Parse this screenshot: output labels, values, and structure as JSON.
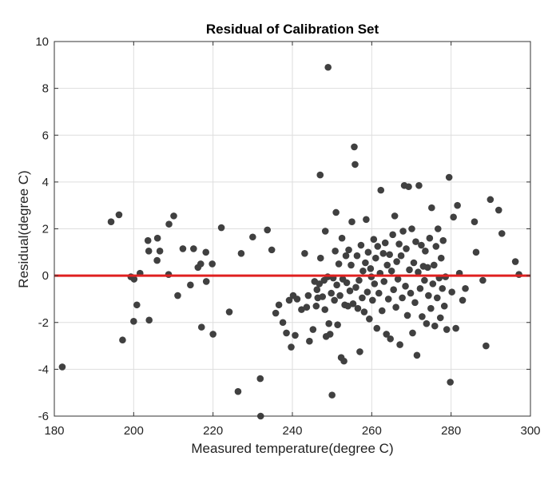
{
  "chart_data": {
    "type": "scatter",
    "title": "Residual of Calibration Set",
    "xlabel": "Measured temperature(degree C)",
    "ylabel": "Residual(degree C)",
    "xlim": [
      180,
      300
    ],
    "ylim": [
      -6,
      10
    ],
    "xticks": [
      180,
      200,
      220,
      240,
      260,
      280,
      300
    ],
    "yticks": [
      -6,
      -4,
      -2,
      0,
      2,
      4,
      6,
      8,
      10
    ],
    "grid": true,
    "legend": "none",
    "point_color": "#404040",
    "reference_line": {
      "y": 0,
      "color": "#e02020"
    },
    "points": [
      [
        182.0,
        -3.9
      ],
      [
        194.3,
        2.3
      ],
      [
        196.3,
        2.6
      ],
      [
        197.2,
        -2.75
      ],
      [
        199.3,
        -0.05
      ],
      [
        200.0,
        -1.95
      ],
      [
        200.1,
        -0.15
      ],
      [
        200.8,
        -1.25
      ],
      [
        201.6,
        0.1
      ],
      [
        203.6,
        1.5
      ],
      [
        203.8,
        1.05
      ],
      [
        203.9,
        -1.9
      ],
      [
        205.9,
        0.65
      ],
      [
        206.0,
        1.6
      ],
      [
        206.6,
        1.05
      ],
      [
        208.8,
        0.05
      ],
      [
        208.9,
        2.2
      ],
      [
        210.1,
        2.55
      ],
      [
        211.1,
        -0.85
      ],
      [
        212.4,
        1.15
      ],
      [
        214.3,
        -0.4
      ],
      [
        215.1,
        1.15
      ],
      [
        216.2,
        0.35
      ],
      [
        216.9,
        0.5
      ],
      [
        217.1,
        -2.2
      ],
      [
        218.2,
        1.0
      ],
      [
        218.3,
        -0.25
      ],
      [
        219.8,
        0.5
      ],
      [
        220.0,
        -2.5
      ],
      [
        222.1,
        2.05
      ],
      [
        224.1,
        -1.55
      ],
      [
        226.3,
        -4.95
      ],
      [
        227.1,
        0.95
      ],
      [
        230.0,
        1.65
      ],
      [
        231.9,
        -4.4
      ],
      [
        232.0,
        -6.0
      ],
      [
        233.7,
        1.95
      ],
      [
        234.8,
        1.1
      ],
      [
        235.8,
        -1.6
      ],
      [
        236.6,
        -1.25
      ],
      [
        237.6,
        -2.0
      ],
      [
        238.5,
        -2.45
      ],
      [
        239.2,
        -1.05
      ],
      [
        239.7,
        -3.05
      ],
      [
        240.2,
        -0.85
      ],
      [
        240.7,
        -2.55
      ],
      [
        241.2,
        -1.0
      ],
      [
        242.3,
        -1.45
      ],
      [
        243.1,
        0.95
      ],
      [
        243.6,
        -1.35
      ],
      [
        244.0,
        -0.85
      ],
      [
        244.3,
        -2.8
      ],
      [
        245.2,
        -2.3
      ],
      [
        245.6,
        -0.25
      ],
      [
        246.0,
        -1.3
      ],
      [
        246.2,
        -0.6
      ],
      [
        246.4,
        -0.95
      ],
      [
        246.8,
        -0.35
      ],
      [
        247.0,
        4.3
      ],
      [
        247.1,
        0.75
      ],
      [
        247.6,
        -0.9
      ],
      [
        248.0,
        -0.2
      ],
      [
        248.2,
        -1.45
      ],
      [
        248.3,
        1.9
      ],
      [
        248.5,
        -2.6
      ],
      [
        248.9,
        -0.05
      ],
      [
        249.0,
        8.9
      ],
      [
        249.2,
        -2.05
      ],
      [
        249.5,
        -2.5
      ],
      [
        249.8,
        -0.75
      ],
      [
        250.0,
        -5.1
      ],
      [
        250.3,
        -0.1
      ],
      [
        250.6,
        -1.05
      ],
      [
        250.8,
        1.05
      ],
      [
        251.0,
        2.7
      ],
      [
        251.2,
        -0.4
      ],
      [
        251.4,
        -2.1
      ],
      [
        251.7,
        0.5
      ],
      [
        252.0,
        -0.85
      ],
      [
        252.3,
        -3.5
      ],
      [
        252.5,
        1.6
      ],
      [
        252.7,
        -0.15
      ],
      [
        253.0,
        -3.65
      ],
      [
        253.2,
        -1.25
      ],
      [
        253.5,
        0.85
      ],
      [
        253.7,
        -0.3
      ],
      [
        254.0,
        -1.3
      ],
      [
        254.2,
        1.1
      ],
      [
        254.5,
        -0.65
      ],
      [
        254.8,
        0.45
      ],
      [
        255.0,
        2.3
      ],
      [
        255.3,
        -1.2
      ],
      [
        255.6,
        5.5
      ],
      [
        255.8,
        4.75
      ],
      [
        256.0,
        -0.5
      ],
      [
        256.3,
        0.85
      ],
      [
        256.5,
        -1.4
      ],
      [
        256.8,
        -0.2
      ],
      [
        257.0,
        -3.25
      ],
      [
        257.3,
        1.3
      ],
      [
        257.6,
        -0.95
      ],
      [
        257.8,
        0.2
      ],
      [
        258.1,
        -1.55
      ],
      [
        258.4,
        0.55
      ],
      [
        258.6,
        2.4
      ],
      [
        258.9,
        -0.7
      ],
      [
        259.1,
        1.0
      ],
      [
        259.4,
        -1.85
      ],
      [
        259.7,
        0.3
      ],
      [
        259.9,
        -0.05
      ],
      [
        260.2,
        -1.05
      ],
      [
        260.5,
        1.55
      ],
      [
        260.7,
        -0.35
      ],
      [
        261.0,
        0.75
      ],
      [
        261.3,
        -2.25
      ],
      [
        261.5,
        1.25
      ],
      [
        261.8,
        -0.75
      ],
      [
        262.1,
        0.1
      ],
      [
        262.3,
        3.65
      ],
      [
        262.6,
        -1.5
      ],
      [
        262.9,
        0.95
      ],
      [
        263.1,
        -0.25
      ],
      [
        263.4,
        1.4
      ],
      [
        263.7,
        -2.5
      ],
      [
        263.9,
        0.45
      ],
      [
        264.2,
        -1.0
      ],
      [
        264.5,
        0.9
      ],
      [
        264.7,
        -2.7
      ],
      [
        265.0,
        0.2
      ],
      [
        265.3,
        1.75
      ],
      [
        265.5,
        -0.6
      ],
      [
        265.8,
        2.55
      ],
      [
        266.1,
        -1.35
      ],
      [
        266.3,
        0.6
      ],
      [
        266.6,
        -0.15
      ],
      [
        266.9,
        1.35
      ],
      [
        267.1,
        -2.95
      ],
      [
        267.4,
        0.85
      ],
      [
        267.7,
        -0.95
      ],
      [
        267.9,
        1.9
      ],
      [
        268.2,
        3.85
      ],
      [
        268.5,
        -0.45
      ],
      [
        268.7,
        1.15
      ],
      [
        269.0,
        -1.7
      ],
      [
        269.3,
        3.8
      ],
      [
        269.5,
        0.25
      ],
      [
        269.8,
        -0.75
      ],
      [
        270.1,
        2.0
      ],
      [
        270.3,
        -2.45
      ],
      [
        270.6,
        0.55
      ],
      [
        270.9,
        -1.15
      ],
      [
        271.1,
        1.45
      ],
      [
        271.4,
        -3.4
      ],
      [
        271.7,
        0.15
      ],
      [
        271.9,
        3.85
      ],
      [
        272.2,
        -0.55
      ],
      [
        272.5,
        1.3
      ],
      [
        272.7,
        -1.75
      ],
      [
        273.0,
        0.4
      ],
      [
        273.3,
        -0.2
      ],
      [
        273.5,
        1.05
      ],
      [
        273.8,
        -2.05
      ],
      [
        274.1,
        0.35
      ],
      [
        274.3,
        -0.85
      ],
      [
        274.6,
        1.6
      ],
      [
        274.9,
        -1.4
      ],
      [
        275.1,
        2.9
      ],
      [
        275.4,
        -0.35
      ],
      [
        275.7,
        0.45
      ],
      [
        275.9,
        -2.15
      ],
      [
        276.2,
        1.25
      ],
      [
        276.5,
        -0.95
      ],
      [
        276.7,
        2.0
      ],
      [
        277.0,
        -0.1
      ],
      [
        277.3,
        -1.8
      ],
      [
        277.5,
        0.75
      ],
      [
        277.8,
        -0.55
      ],
      [
        278.0,
        1.5
      ],
      [
        278.3,
        -1.3
      ],
      [
        278.6,
        -0.05
      ],
      [
        278.9,
        -2.3
      ],
      [
        279.5,
        4.2
      ],
      [
        279.8,
        -4.55
      ],
      [
        280.2,
        -0.7
      ],
      [
        280.6,
        2.5
      ],
      [
        281.2,
        -2.25
      ],
      [
        281.6,
        3.0
      ],
      [
        282.1,
        0.1
      ],
      [
        282.9,
        -1.05
      ],
      [
        283.6,
        -0.55
      ],
      [
        285.9,
        2.3
      ],
      [
        286.3,
        1.0
      ],
      [
        288.0,
        -0.2
      ],
      [
        288.8,
        -3.0
      ],
      [
        289.9,
        3.25
      ],
      [
        292.0,
        2.8
      ],
      [
        292.8,
        1.8
      ],
      [
        296.2,
        0.6
      ],
      [
        297.1,
        0.05
      ]
    ]
  }
}
